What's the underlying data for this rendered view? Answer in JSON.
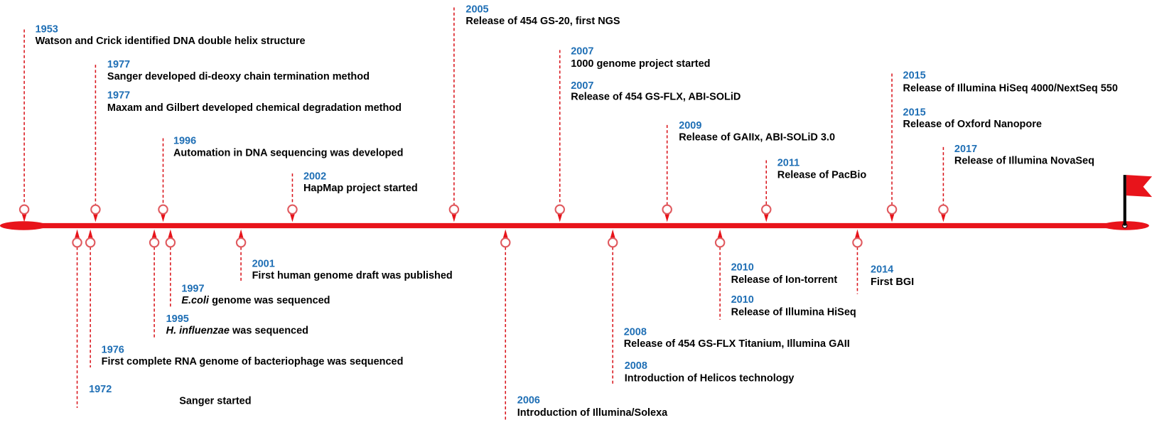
{
  "events": [
    {
      "year": "1953",
      "text": "Watson and Crick identified DNA double helix structure"
    },
    {
      "year": "1977",
      "text": "Sanger developed di-deoxy chain termination method"
    },
    {
      "year": "1977",
      "text": "Maxam and Gilbert developed chemical degradation method"
    },
    {
      "year": "1996",
      "text": "Automation in DNA sequencing was developed"
    },
    {
      "year": "2002",
      "text": "HapMap project started"
    },
    {
      "year": "2005",
      "text": "Release of 454 GS-20, first NGS"
    },
    {
      "year": "2007",
      "text": "1000 genome project started"
    },
    {
      "year": "2007",
      "text": "Release of 454 GS-FLX, ABI-SOLiD"
    },
    {
      "year": "2009",
      "text": "Release of GAIIx, ABI-SOLiD 3.0"
    },
    {
      "year": "2011",
      "text": "Release of PacBio"
    },
    {
      "year": "2015",
      "text": "Release of Illumina HiSeq 4000/NextSeq 550"
    },
    {
      "year": "2015",
      "text": "Release of Oxford Nanopore"
    },
    {
      "year": "2017",
      "text": "Release of Illumina NovaSeq"
    },
    {
      "year": "1972",
      "text": "Sanger started"
    },
    {
      "year": "1976",
      "text": "First complete RNA genome of bacteriophage was sequenced"
    },
    {
      "year": "1995",
      "italic": "H. influenzae",
      "text": "was sequenced"
    },
    {
      "year": "1997",
      "italic": "E.coli",
      "text": "genome was sequenced"
    },
    {
      "year": "2001",
      "text": "First human genome draft was published"
    },
    {
      "year": "2006",
      "text": "Introduction of Illumina/Solexa"
    },
    {
      "year": "2008",
      "text": "Release of 454 GS-FLX Titanium, Illumina GAII"
    },
    {
      "year": "2008",
      "text": "Introduction of Helicos technology"
    },
    {
      "year": "2010",
      "text": "Release of Ion-torrent"
    },
    {
      "year": "2010",
      "text": "Release of Illumina HiSeq"
    },
    {
      "year": "2014",
      "text": "First BGI"
    }
  ]
}
